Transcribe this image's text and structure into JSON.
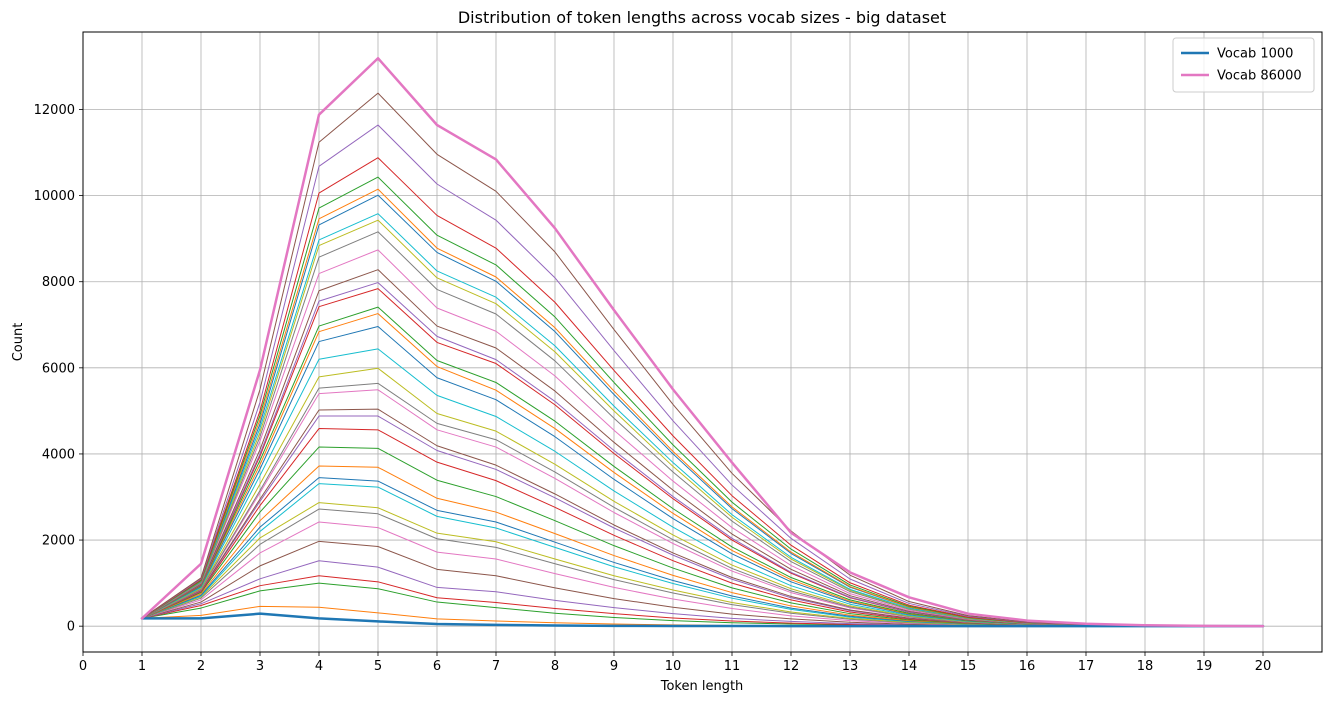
{
  "chart_data": {
    "type": "line",
    "title": "Distribution of token lengths across vocab sizes  - big dataset",
    "xlabel": "Token length",
    "ylabel": "Count",
    "xlim": [
      0,
      21
    ],
    "ylim": [
      -600,
      13800
    ],
    "x_ticks": [
      0,
      1,
      2,
      3,
      4,
      5,
      6,
      7,
      8,
      9,
      10,
      11,
      12,
      13,
      14,
      15,
      16,
      17,
      18,
      19,
      20
    ],
    "y_ticks": [
      0,
      2000,
      4000,
      6000,
      8000,
      10000,
      12000
    ],
    "grid": true,
    "legend_position": "top-right",
    "x": [
      1,
      2,
      3,
      4,
      5,
      6,
      7,
      8,
      9,
      10,
      11,
      12,
      13,
      14,
      15,
      16,
      17,
      18,
      19,
      20
    ],
    "series": [
      {
        "name": "Vocab 1000",
        "color": "#1f77b4",
        "highlight": true,
        "values": [
          180,
          180,
          290,
          180,
          110,
          50,
          30,
          15,
          8,
          5,
          3,
          2,
          1,
          1,
          0,
          0,
          0,
          0,
          0,
          0
        ]
      },
      {
        "color": "#ff7f0e",
        "values": [
          180,
          250,
          460,
          440,
          310,
          170,
          120,
          80,
          50,
          30,
          15,
          10,
          5,
          3,
          2,
          1,
          0,
          0,
          0,
          0
        ]
      },
      {
        "color": "#2ca02c",
        "values": [
          180,
          420,
          820,
          1000,
          870,
          560,
          430,
          300,
          200,
          130,
          80,
          50,
          30,
          15,
          8,
          4,
          2,
          1,
          0,
          0
        ]
      },
      {
        "color": "#d62728",
        "values": [
          180,
          480,
          940,
          1170,
          1030,
          660,
          550,
          410,
          290,
          190,
          120,
          70,
          40,
          20,
          10,
          5,
          2,
          1,
          0,
          0
        ]
      },
      {
        "color": "#9467bd",
        "values": [
          180,
          520,
          1100,
          1520,
          1370,
          900,
          800,
          600,
          430,
          290,
          180,
          110,
          60,
          30,
          15,
          7,
          3,
          1,
          0,
          0
        ]
      },
      {
        "color": "#8c564b",
        "values": [
          180,
          560,
          1400,
          1970,
          1850,
          1320,
          1170,
          890,
          640,
          440,
          280,
          170,
          90,
          45,
          20,
          9,
          4,
          2,
          1,
          0
        ]
      },
      {
        "color": "#e377c2",
        "values": [
          180,
          610,
          1700,
          2420,
          2290,
          1720,
          1560,
          1220,
          900,
          630,
          410,
          240,
          130,
          65,
          30,
          13,
          5,
          2,
          1,
          0
        ]
      },
      {
        "color": "#7f7f7f",
        "values": [
          180,
          650,
          1900,
          2720,
          2610,
          2030,
          1830,
          1450,
          1080,
          770,
          500,
          300,
          160,
          80,
          36,
          16,
          6,
          3,
          1,
          0
        ]
      },
      {
        "color": "#bcbd22",
        "values": [
          180,
          680,
          2050,
          2870,
          2750,
          2160,
          1960,
          1560,
          1170,
          840,
          550,
          330,
          180,
          90,
          40,
          18,
          7,
          3,
          1,
          0
        ]
      },
      {
        "color": "#17becf",
        "values": [
          180,
          700,
          2200,
          3310,
          3230,
          2550,
          2280,
          1830,
          1380,
          990,
          650,
          390,
          210,
          105,
          47,
          20,
          8,
          3,
          1,
          0
        ]
      },
      {
        "color": "#1f77b4",
        "values": [
          180,
          720,
          2300,
          3450,
          3370,
          2690,
          2420,
          1950,
          1480,
          1060,
          700,
          420,
          230,
          115,
          52,
          22,
          9,
          3,
          1,
          0
        ]
      },
      {
        "color": "#ff7f0e",
        "values": [
          180,
          750,
          2450,
          3720,
          3690,
          2970,
          2650,
          2150,
          1640,
          1180,
          780,
          470,
          255,
          128,
          58,
          24,
          10,
          4,
          1,
          0
        ]
      },
      {
        "color": "#2ca02c",
        "values": [
          180,
          780,
          2650,
          4160,
          4130,
          3390,
          3010,
          2450,
          1870,
          1350,
          890,
          540,
          290,
          145,
          65,
          27,
          11,
          4,
          1,
          0
        ]
      },
      {
        "color": "#d62728",
        "values": [
          180,
          800,
          2800,
          4590,
          4560,
          3810,
          3380,
          2760,
          2110,
          1520,
          1000,
          610,
          330,
          165,
          74,
          30,
          12,
          4,
          1,
          0
        ]
      },
      {
        "color": "#9467bd",
        "values": [
          180,
          820,
          2900,
          4880,
          4880,
          4080,
          3640,
          2980,
          2280,
          1650,
          1090,
          660,
          360,
          180,
          80,
          33,
          13,
          5,
          2,
          0
        ]
      },
      {
        "color": "#8c564b",
        "values": [
          180,
          830,
          2950,
          5020,
          5040,
          4190,
          3740,
          3070,
          2350,
          1700,
          1130,
          690,
          375,
          187,
          84,
          34,
          13,
          5,
          2,
          0
        ]
      },
      {
        "color": "#e377c2",
        "values": [
          180,
          850,
          3100,
          5400,
          5490,
          4560,
          4160,
          3430,
          2640,
          1920,
          1280,
          780,
          425,
          210,
          94,
          38,
          15,
          5,
          2,
          0
        ]
      },
      {
        "color": "#7f7f7f",
        "values": [
          180,
          860,
          3150,
          5530,
          5640,
          4710,
          4330,
          3580,
          2760,
          2010,
          1340,
          820,
          445,
          220,
          98,
          40,
          15,
          5,
          2,
          0
        ]
      },
      {
        "color": "#bcbd22",
        "values": [
          180,
          880,
          3300,
          5790,
          5990,
          4940,
          4530,
          3760,
          2900,
          2120,
          1420,
          870,
          470,
          232,
          103,
          42,
          16,
          6,
          2,
          0
        ]
      },
      {
        "color": "#17becf",
        "values": [
          180,
          900,
          3500,
          6200,
          6440,
          5360,
          4870,
          4060,
          3140,
          2300,
          1540,
          940,
          510,
          250,
          110,
          45,
          17,
          6,
          2,
          0
        ]
      },
      {
        "color": "#1f77b4",
        "values": [
          180,
          920,
          3650,
          6610,
          6960,
          5770,
          5260,
          4400,
          3410,
          2500,
          1680,
          1030,
          555,
          272,
          120,
          49,
          18,
          6,
          2,
          0
        ]
      },
      {
        "color": "#ff7f0e",
        "values": [
          180,
          940,
          3750,
          6840,
          7260,
          6030,
          5480,
          4590,
          3570,
          2620,
          1760,
          1080,
          580,
          285,
          125,
          51,
          19,
          7,
          2,
          0
        ]
      },
      {
        "color": "#2ca02c",
        "values": [
          180,
          950,
          3850,
          6970,
          7410,
          6170,
          5660,
          4760,
          3710,
          2730,
          1840,
          1130,
          610,
          298,
          130,
          53,
          20,
          7,
          2,
          0
        ]
      },
      {
        "color": "#d62728",
        "values": [
          180,
          960,
          3950,
          7420,
          7840,
          6590,
          6100,
          5140,
          4010,
          2960,
          2000,
          1230,
          660,
          322,
          140,
          57,
          21,
          7,
          2,
          0
        ]
      },
      {
        "color": "#9467bd",
        "values": [
          180,
          970,
          4000,
          7550,
          7980,
          6730,
          6190,
          5220,
          4080,
          3010,
          2040,
          1250,
          672,
          328,
          143,
          58,
          22,
          8,
          2,
          0
        ]
      },
      {
        "color": "#8c564b",
        "values": [
          180,
          980,
          4100,
          7790,
          8280,
          6970,
          6460,
          5460,
          4270,
          3160,
          2140,
          1320,
          708,
          345,
          150,
          61,
          23,
          8,
          2,
          0
        ]
      },
      {
        "color": "#e377c2",
        "values": [
          180,
          1000,
          4300,
          8190,
          8740,
          7390,
          6850,
          5810,
          4550,
          3370,
          2290,
          1410,
          756,
          368,
          160,
          65,
          24,
          8,
          3,
          0
        ]
      },
      {
        "color": "#7f7f7f",
        "values": [
          180,
          1010,
          4400,
          8570,
          9160,
          7820,
          7250,
          6160,
          4830,
          3580,
          2440,
          1500,
          805,
          392,
          170,
          69,
          26,
          9,
          3,
          0
        ]
      },
      {
        "color": "#bcbd22",
        "values": [
          180,
          1020,
          4500,
          8840,
          9430,
          8090,
          7490,
          6370,
          5000,
          3710,
          2530,
          1560,
          835,
          406,
          176,
          71,
          27,
          9,
          3,
          0
        ]
      },
      {
        "color": "#17becf",
        "values": [
          180,
          1030,
          4600,
          8970,
          9580,
          8250,
          7640,
          6510,
          5110,
          3800,
          2590,
          1600,
          855,
          415,
          180,
          73,
          27,
          9,
          3,
          0
        ]
      },
      {
        "color": "#1f77b4",
        "values": [
          180,
          1040,
          4700,
          9320,
          10010,
          8680,
          8010,
          6840,
          5380,
          4000,
          2730,
          1690,
          905,
          438,
          190,
          77,
          29,
          10,
          3,
          0
        ]
      },
      {
        "color": "#ff7f0e",
        "values": [
          180,
          1050,
          4800,
          9460,
          10150,
          8780,
          8110,
          6930,
          5460,
          4060,
          2770,
          1720,
          920,
          445,
          193,
          78,
          29,
          10,
          3,
          0
        ]
      },
      {
        "color": "#2ca02c",
        "values": [
          180,
          1060,
          4900,
          9710,
          10430,
          9080,
          8390,
          7180,
          5660,
          4210,
          2880,
          1790,
          958,
          463,
          200,
          81,
          30,
          10,
          3,
          0
        ]
      },
      {
        "color": "#d62728",
        "values": [
          180,
          1080,
          5000,
          10060,
          10880,
          9540,
          8780,
          7520,
          5940,
          4420,
          3030,
          1880,
          1008,
          487,
          210,
          85,
          32,
          11,
          3,
          0
        ]
      },
      {
        "color": "#9467bd",
        "values": [
          180,
          1100,
          5200,
          10680,
          11640,
          10270,
          9430,
          8090,
          6400,
          4770,
          3280,
          2040,
          1095,
          528,
          228,
          92,
          34,
          11,
          4,
          0
        ]
      },
      {
        "color": "#8c564b",
        "values": [
          180,
          1120,
          5500,
          11240,
          12380,
          10960,
          10100,
          8690,
          6890,
          5150,
          3550,
          2210,
          1185,
          572,
          246,
          99,
          37,
          12,
          4,
          0
        ]
      },
      {
        "name": "Vocab 86000",
        "color": "#e377c2",
        "highlight": true,
        "values": [
          180,
          1450,
          5950,
          11880,
          13190,
          11640,
          10840,
          9240,
          7340,
          5500,
          3800,
          2170,
          1250,
          670,
          290,
          130,
          55,
          20,
          7,
          2
        ]
      }
    ]
  }
}
